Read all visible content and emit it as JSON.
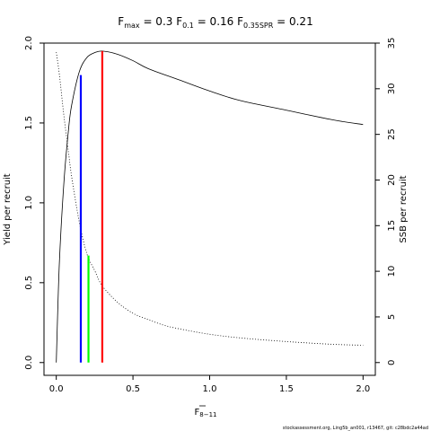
{
  "chart_data": {
    "type": "line",
    "title": {
      "fmax_label": "F",
      "fmax_sub": "max",
      "fmax_value": " = 0.3",
      "f01_label": "F",
      "f01_sub": "0.1",
      "f01_value": " = 0.16",
      "f35_label": "F",
      "f35_sub": "0.35SPR",
      "f35_value": " = 0.21"
    },
    "xlabel": "F",
    "xlabel_sub": "8−11",
    "ylabel": "Yield per recruit",
    "ylabel_right": "SSB per recruit",
    "xlim": [
      -0.08,
      2.08
    ],
    "ylim": [
      -0.08,
      2.0
    ],
    "ylim_right": [
      -1.4,
      35.0
    ],
    "x_ticks": [
      0,
      0.5,
      1.0,
      1.5,
      2.0
    ],
    "x_tick_labels": [
      "0.0",
      "0.5",
      "1.0",
      "1.5",
      "2.0"
    ],
    "y_ticks": [
      0,
      0.5,
      1.0,
      1.5,
      2.0
    ],
    "y_tick_labels": [
      "0.0",
      "0.5",
      "1.0",
      "1.5",
      "2.0"
    ],
    "y_right_ticks": [
      0,
      5,
      10,
      15,
      20,
      25,
      30,
      35
    ],
    "y_right_tick_labels": [
      "0",
      "5",
      "10",
      "15",
      "20",
      "25",
      "30",
      "35"
    ],
    "series": [
      {
        "axis": "left",
        "style": "solid",
        "color": "#000000",
        "x": [
          0,
          0.02,
          0.05,
          0.08,
          0.1,
          0.15,
          0.2,
          0.25,
          0.3,
          0.4,
          0.5,
          0.6,
          0.8,
          1.0,
          1.2,
          1.5,
          1.8,
          2.0
        ],
        "y": [
          0,
          0.62,
          1.13,
          1.46,
          1.61,
          1.82,
          1.91,
          1.94,
          1.95,
          1.93,
          1.89,
          1.84,
          1.77,
          1.7,
          1.64,
          1.58,
          1.52,
          1.49
        ]
      },
      {
        "axis": "right",
        "style": "dotted",
        "color": "#000000",
        "x": [
          0,
          0.02,
          0.05,
          0.08,
          0.1,
          0.15,
          0.2,
          0.25,
          0.3,
          0.4,
          0.5,
          0.6,
          0.7,
          0.8,
          1.0,
          1.2,
          1.5,
          1.8,
          2.0
        ],
        "y": [
          34.0,
          31.6,
          27.0,
          23.0,
          20.4,
          15.4,
          11.9,
          10.1,
          8.4,
          6.6,
          5.4,
          4.7,
          4.1,
          3.7,
          3.1,
          2.7,
          2.3,
          2.0,
          1.9
        ]
      }
    ],
    "reference_lines": [
      {
        "x": 0.16,
        "y_top": 1.8,
        "color": "#0000ff"
      },
      {
        "x": 0.21,
        "y_top": 0.67,
        "color": "#00ff00"
      },
      {
        "x": 0.3,
        "y_top": 1.95,
        "color": "#ff0000"
      }
    ]
  },
  "footer": "stockassessment.org, Ling5b_an001, r13467, git: c28bdc2a44ad"
}
